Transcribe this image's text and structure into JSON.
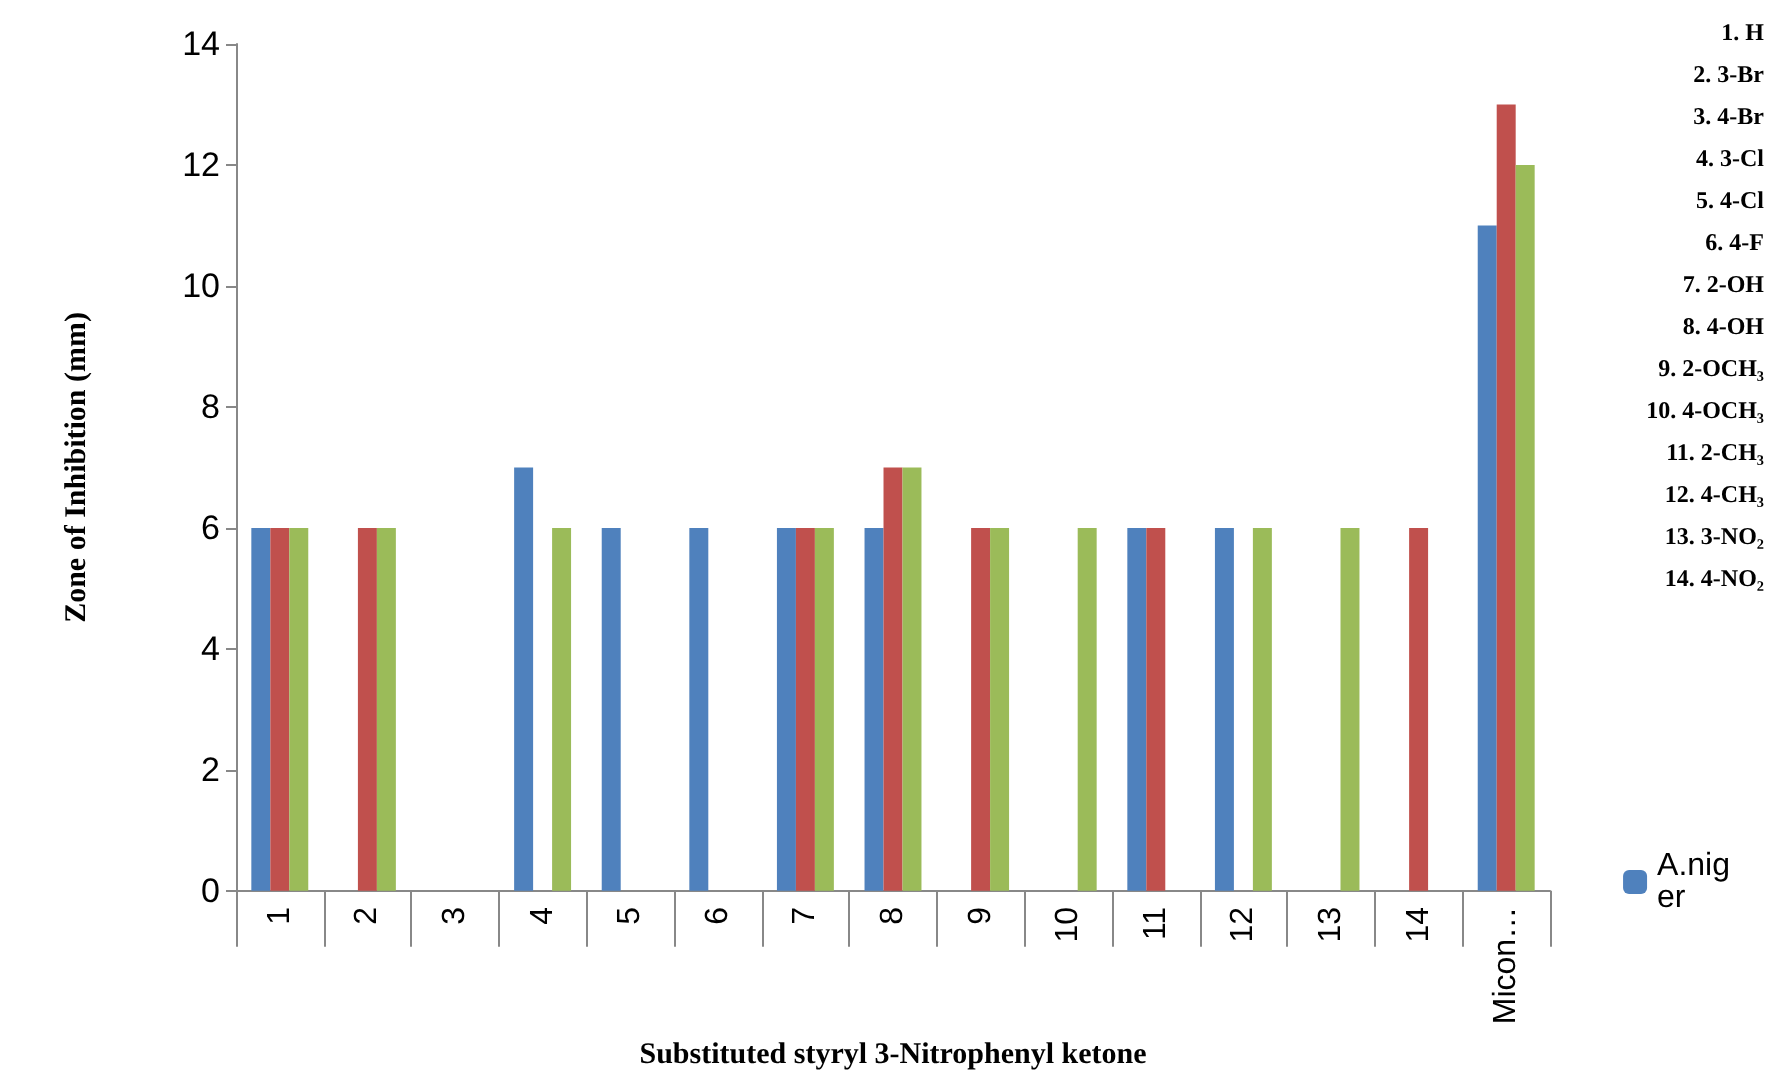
{
  "chart_data": {
    "type": "bar",
    "xlabel": "Substituted styryl 3-Nitrophenyl ketone",
    "ylabel": "Zone of Inhibition (mm)",
    "categories": [
      "1",
      "2",
      "3",
      "4",
      "5",
      "6",
      "7",
      "8",
      "9",
      "10",
      "11",
      "12",
      "13",
      "14",
      "Micon…"
    ],
    "series": [
      {
        "name": "A.niger",
        "color": "#4f81bd",
        "values": [
          6,
          0,
          0,
          7,
          6,
          6,
          6,
          6,
          0,
          0,
          6,
          6,
          0,
          0,
          11
        ]
      },
      {
        "color": "#c0504d",
        "values": [
          6,
          6,
          0,
          0,
          0,
          0,
          6,
          7,
          6,
          0,
          6,
          0,
          0,
          6,
          13
        ]
      },
      {
        "color": "#9bbb59",
        "values": [
          6,
          6,
          0,
          6,
          0,
          0,
          6,
          7,
          6,
          6,
          0,
          6,
          6,
          0,
          12
        ]
      }
    ],
    "ylim": [
      0,
      14
    ],
    "yticks": [
      0,
      2,
      4,
      6,
      8,
      10,
      12,
      14
    ],
    "legend": "right",
    "annotations": [
      "1. H",
      "2. 3-Br",
      "3. 4-Br",
      "4. 3-Cl",
      "5. 4-Cl",
      "6. 4-F",
      "7. 2-OH",
      "8. 4-OH",
      "9. 2-OCH₃",
      "10. 4-OCH₃",
      "11. 2-CH₃",
      "12. 4-CH₃",
      "13. 3-NO₂",
      "14. 4-NO₂"
    ]
  }
}
